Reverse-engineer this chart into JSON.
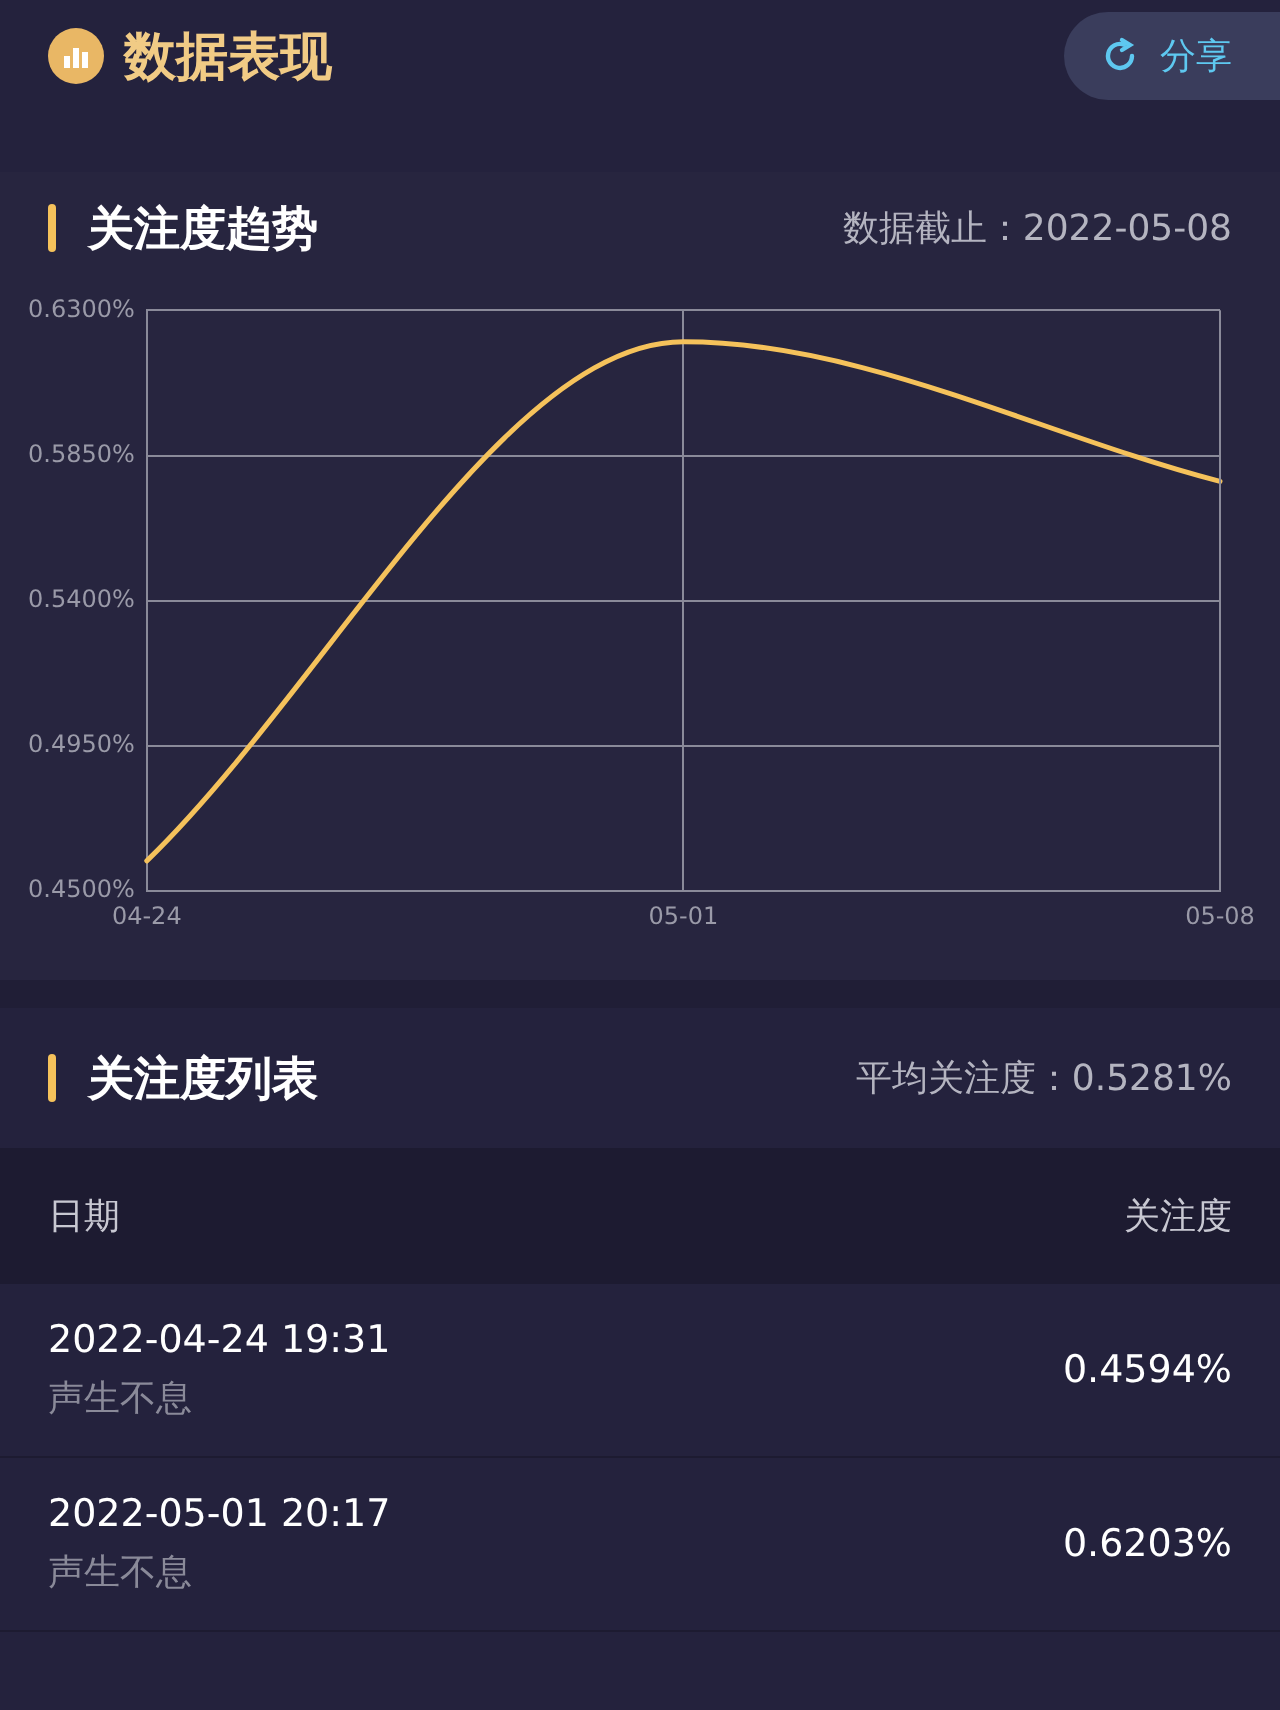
{
  "chart_data": {
    "type": "line",
    "title": "数据表现",
    "subtitle": "关注度趋势",
    "categories": [
      "04-24",
      "05-01",
      "05-08"
    ],
    "series": [
      {
        "color": "#f5c25b",
        "values": [
          0.4594,
          0.6203,
          0.577
        ]
      }
    ],
    "ylim": [
      0.45,
      0.63
    ],
    "yticks": [
      {
        "value": 0.45,
        "label": "0.4500%"
      },
      {
        "value": 0.495,
        "label": "0.4950%"
      },
      {
        "value": 0.54,
        "label": "0.5400%"
      },
      {
        "value": 0.585,
        "label": "0.5850%"
      },
      {
        "value": 0.63,
        "label": "0.6300%"
      }
    ],
    "grid": true,
    "legend": false,
    "marker": "none",
    "line_style": "solid",
    "annotations": [
      "分享",
      "数据截止：2022-05-08",
      "关注度列表",
      "平均关注度：0.5281%",
      "日期",
      "关注度",
      "2022-04-24 19:31",
      "声生不息",
      "0.4594%",
      "2022-05-01 20:17",
      "声生不息",
      "0.6203%"
    ]
  }
}
